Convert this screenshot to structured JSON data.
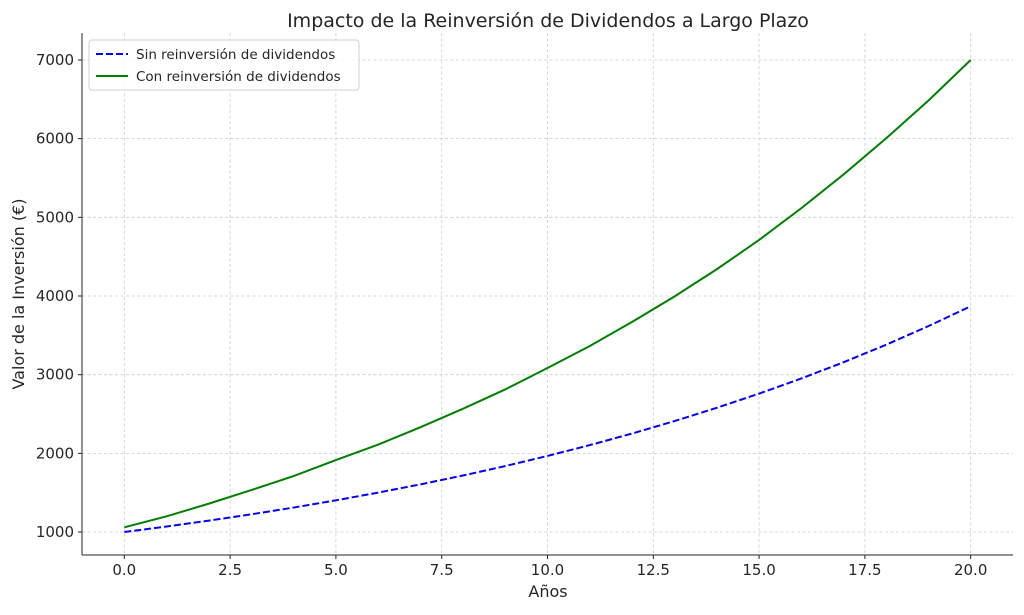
{
  "chart_data": {
    "type": "line",
    "title": "Impacto de la Reinversión de Dividendos a Largo Plazo",
    "xlabel": "Años",
    "ylabel": "Valor de la Inversión (€)",
    "xlim": [
      -1,
      21
    ],
    "ylim": [
      708,
      7343
    ],
    "xticks": [
      0,
      2.5,
      5,
      7.5,
      10,
      12.5,
      15,
      17.5,
      20
    ],
    "xtick_labels": [
      "0.0",
      "2.5",
      "5.0",
      "7.5",
      "10.0",
      "12.5",
      "15.0",
      "17.5",
      "20.0"
    ],
    "yticks": [
      1000,
      2000,
      3000,
      4000,
      5000,
      6000,
      7000
    ],
    "ytick_labels": [
      "1000",
      "2000",
      "3000",
      "4000",
      "5000",
      "6000",
      "7000"
    ],
    "grid": true,
    "legend_position": "top-left",
    "x": [
      0,
      1,
      2,
      3,
      4,
      5,
      6,
      7,
      8,
      9,
      10,
      11,
      12,
      13,
      14,
      15,
      16,
      17,
      18,
      19,
      20
    ],
    "series": [
      {
        "name": "Sin reinversión de dividendos",
        "color": "#0000ff",
        "style": "dashed",
        "values": [
          1000,
          1070,
          1145,
          1225,
          1311,
          1403,
          1501,
          1606,
          1718,
          1838,
          1967,
          2105,
          2252,
          2410,
          2579,
          2759,
          2952,
          3159,
          3380,
          3617,
          3870
        ]
      },
      {
        "name": "Con reinversión de dividendos",
        "color": "#008000",
        "style": "solid",
        "values": [
          1060,
          1200,
          1361,
          1533,
          1712,
          1915,
          2112,
          2333,
          2566,
          2812,
          3085,
          3365,
          3671,
          3994,
          4340,
          4712,
          5117,
          5547,
          6003,
          6484,
          7000
        ]
      }
    ]
  }
}
